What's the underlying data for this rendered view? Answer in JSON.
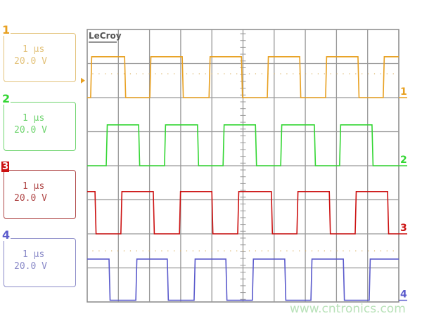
{
  "brand": "LeCroy",
  "watermark": "www.cntronics.com",
  "channels": [
    {
      "label": "1",
      "timebase": "1 μs",
      "scale": "20.0 V",
      "color": "#e8a020",
      "box_color": "#e3c27a"
    },
    {
      "label": "2",
      "timebase": "1 μs",
      "scale": "20.0 V",
      "color": "#33d633",
      "box_color": "#6fd46f"
    },
    {
      "label": "3",
      "timebase": "1 μs",
      "scale": "20.0 V",
      "color": "#cc1111",
      "box_color": "#b04848"
    },
    {
      "label": "4",
      "timebase": "1 μs",
      "scale": "20.0 V",
      "color": "#5a5acc",
      "box_color": "#8a8ac8"
    }
  ],
  "chart_data": {
    "type": "line",
    "title": "",
    "xlabel": "",
    "ylabel": "",
    "x_units": "μs",
    "xlim": [
      0,
      10
    ],
    "ylim_divisions": [
      0,
      8
    ],
    "grid": true,
    "grid_divisions": {
      "x": 10,
      "y": 8
    },
    "series": [
      {
        "name": "1",
        "start_level": "low",
        "high_div": 7.2,
        "low_div": 6.0,
        "edges_us": [
          0.11,
          1.2,
          2.01,
          3.05,
          3.91,
          4.95,
          5.78,
          6.82,
          7.65,
          8.69,
          9.5
        ]
      },
      {
        "name": "2",
        "start_level": "low",
        "high_div": 5.2,
        "low_div": 4.0,
        "edges_us": [
          0.61,
          1.65,
          2.48,
          3.54,
          4.36,
          5.4,
          6.21,
          7.29,
          8.1,
          9.14
        ]
      },
      {
        "name": "3",
        "start_level": "high",
        "high_div": 3.24,
        "low_div": 2.0,
        "edges_us": [
          0.25,
          1.08,
          2.12,
          2.96,
          4.0,
          4.83,
          5.91,
          6.73,
          7.77,
          8.6,
          9.64
        ]
      },
      {
        "name": "4",
        "start_level": "high",
        "high_div": 1.26,
        "low_div": 0.05,
        "edges_us": [
          0.7,
          1.56,
          2.57,
          3.43,
          4.45,
          5.3,
          6.34,
          7.18,
          8.22,
          9.05
        ]
      }
    ]
  }
}
